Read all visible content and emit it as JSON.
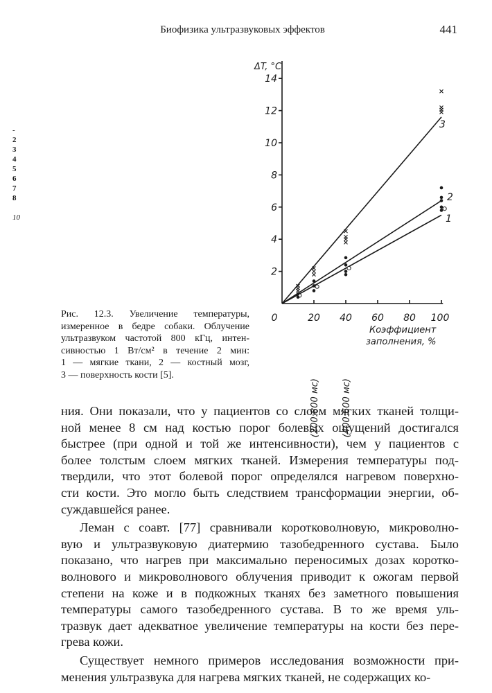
{
  "header": {
    "running_title": "Биофизика ультразвуковых эффектов",
    "page_number": "441"
  },
  "margin_marks": [
    "-",
    "2",
    "3",
    "4",
    "5",
    "6",
    "7",
    "8",
    "10"
  ],
  "figure": {
    "caption_lines": [
      "Рис. 12.3. Увеличение температуры,",
      "измеренное в бедре собаки. Облучение",
      "ультразвуком частотой 800 кГц, интен-",
      "сивностью 1 Вт/см² в течение 2 мин:",
      "1 — мягкие ткани, 2 — костный мозг,",
      "3 — поверхность кости [5]."
    ]
  },
  "chart_data": {
    "type": "scatter",
    "ylabel": "ΔT, °C",
    "xlabel_lines": [
      "Коэффициент",
      "заполнения, %"
    ],
    "x_tick_labels": [
      "0",
      "20",
      "40",
      "60",
      "80",
      "100"
    ],
    "y_tick_labels": [
      "2",
      "4",
      "6",
      "8",
      "10",
      "12",
      "14"
    ],
    "x_annotations": [
      {
        "x": 20,
        "text": "(200:800 мс)"
      },
      {
        "x": 40,
        "text": "(400:600 мс)"
      }
    ],
    "xlim": [
      0,
      100
    ],
    "ylim": [
      0,
      14
    ],
    "grid": false,
    "series": [
      {
        "name": "1",
        "marker": "open-circle",
        "points": [
          [
            11,
            0.5
          ],
          [
            22,
            1.05
          ],
          [
            42,
            2.2
          ],
          [
            102,
            5.9
          ]
        ],
        "fit_end": [
          100,
          5.5
        ]
      },
      {
        "name": "2",
        "marker": "dot",
        "points": [
          [
            10,
            0.4
          ],
          [
            10,
            0.6
          ],
          [
            20,
            0.8
          ],
          [
            20,
            1.1
          ],
          [
            20,
            1.4
          ],
          [
            40,
            1.8
          ],
          [
            40,
            2.0
          ],
          [
            40,
            2.4
          ],
          [
            40,
            2.85
          ],
          [
            100,
            5.8
          ],
          [
            100,
            6.0
          ],
          [
            100,
            6.4
          ],
          [
            100,
            6.6
          ],
          [
            100,
            7.2
          ]
        ],
        "fit_end": [
          100,
          6.4
        ]
      },
      {
        "name": "3",
        "marker": "cross",
        "points": [
          [
            10,
            0.8
          ],
          [
            10,
            0.95
          ],
          [
            10,
            1.1
          ],
          [
            20,
            1.8
          ],
          [
            20,
            2.0
          ],
          [
            20,
            2.2
          ],
          [
            40,
            3.8
          ],
          [
            40,
            4.0
          ],
          [
            40,
            4.15
          ],
          [
            40,
            4.5
          ],
          [
            100,
            11.9
          ],
          [
            100,
            12.05
          ],
          [
            100,
            12.2
          ],
          [
            100,
            13.2
          ]
        ],
        "fit_end": [
          100,
          11.6
        ]
      }
    ]
  },
  "body": {
    "paragraphs": [
      {
        "indent": false,
        "lines": [
          "ния. Они показали, что у пациентов со слоем мягких тканей толщи-",
          "ной менее 8 см над костью порог болевых ощущений достигался",
          "быстрее (при одной и той же интенсивности), чем у пациентов с",
          "более толстым слоем мягких тканей. Измерения температуры под-",
          "твердили, что этот болевой порог определялся нагревом поверхно-",
          "сти кости. Это могло быть следствием трансформации энергии, об-",
          "суждавшейся ранее."
        ]
      },
      {
        "indent": true,
        "lines": [
          "Леман с соавт. [77] сравнивали коротковолновую, микроволно-",
          "вую и ультразвуковую диатермию тазобедренного сустава. Было",
          "показано, что нагрев при максимально переносимых дозах коротко-",
          "волнового и микроволнового облучения приводит к ожогам первой",
          "степени на коже и в подкожных тканях без заметного повышения",
          "температуры самого тазобедренного сустава. В то же время уль-",
          "тразвук дает адекватное увеличение температуры на кости без пере-",
          "грева кожи."
        ]
      },
      {
        "indent": true,
        "lines": [
          "Существует немного примеров исследования возможности при-",
          "менения ультразвука для нагрева мягких тканей, не содержащих ко-"
        ]
      }
    ]
  }
}
